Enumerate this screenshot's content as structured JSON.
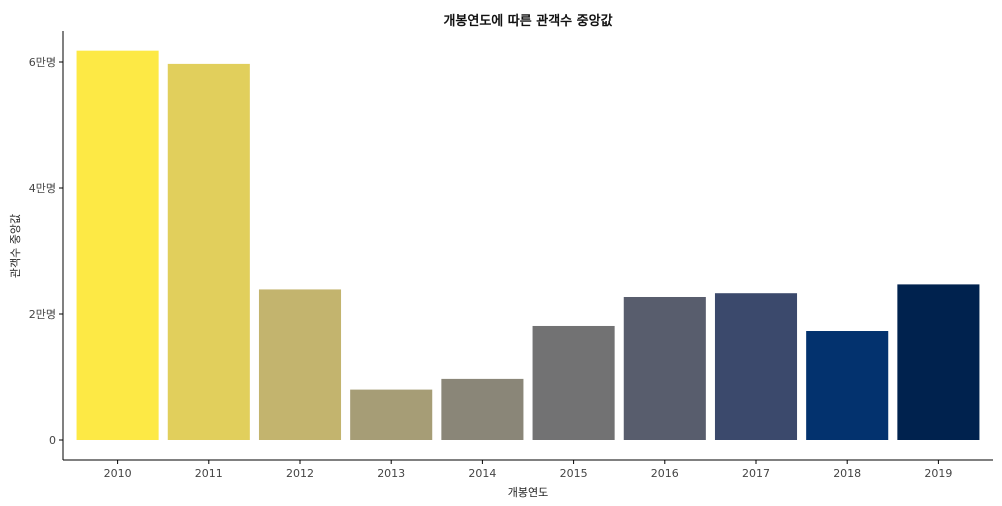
{
  "chart_data": {
    "type": "bar",
    "title": "개봉연도에 따른 관객수 중앙값",
    "xlabel": "개봉연도",
    "ylabel": "관객수 중앙값",
    "categories": [
      "2010",
      "2011",
      "2012",
      "2013",
      "2014",
      "2015",
      "2016",
      "2017",
      "2018",
      "2019"
    ],
    "values": [
      61800,
      59700,
      23900,
      8000,
      9700,
      18100,
      22700,
      23300,
      17300,
      24700
    ],
    "colors": [
      "#fde945",
      "#e1cf5c",
      "#c3b46e",
      "#a69d76",
      "#8a8678",
      "#727273",
      "#585d6d",
      "#3b496c",
      "#03326e",
      "#00224e"
    ],
    "ylim": [
      0,
      65000
    ],
    "yticks": [
      {
        "value": 0,
        "label": "0"
      },
      {
        "value": 20000,
        "label": "2만명"
      },
      {
        "value": 40000,
        "label": "4만명"
      },
      {
        "value": 60000,
        "label": "6만명"
      }
    ],
    "grid": false,
    "legend": "none"
  }
}
